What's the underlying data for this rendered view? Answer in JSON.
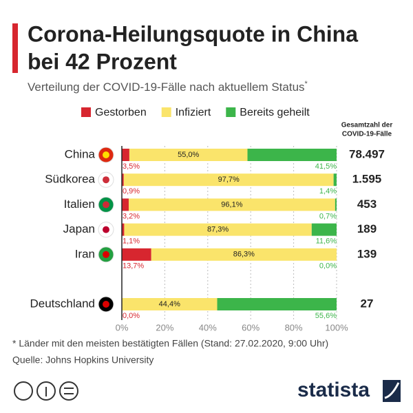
{
  "chart_data": {
    "type": "stacked_bar_horizontal",
    "title_lines": [
      "Corona-Heilungsquote in China",
      "bei 42 Prozent"
    ],
    "subtitle": "Verteilung der COVID-19-Fälle nach aktuellem Status",
    "subtitle_mark": "*",
    "categories": [
      "China",
      "Südkorea",
      "Italien",
      "Japan",
      "Iran",
      "Deutschland"
    ],
    "series": [
      {
        "name": "Gestorben",
        "color": "#d7262f",
        "values": [
          3.5,
          0.9,
          3.2,
          1.1,
          13.7,
          0.0
        ],
        "value_labels": [
          "3,5%",
          "0,9%",
          "3,2%",
          "1,1%",
          "13,7%",
          "0,0%"
        ]
      },
      {
        "name": "Infiziert",
        "color": "#fae46b",
        "values": [
          55.0,
          97.7,
          96.1,
          87.3,
          86.3,
          44.4
        ],
        "value_labels": [
          "55,0%",
          "97,7%",
          "96,1%",
          "87,3%",
          "86,3%",
          "44,4%"
        ]
      },
      {
        "name": "Bereits geheilt",
        "color": "#3cb54a",
        "values": [
          41.5,
          1.4,
          0.7,
          11.6,
          0.0,
          55.6
        ],
        "value_labels": [
          "41,5%",
          "1,4%",
          "0,7%",
          "11,6%",
          "0,0%",
          "55,6%"
        ]
      }
    ],
    "xlim": [
      0,
      100
    ],
    "xticks": [
      {
        "value": 0,
        "label": "0%"
      },
      {
        "value": 20,
        "label": "20%"
      },
      {
        "value": 40,
        "label": "40%"
      },
      {
        "value": 60,
        "label": "60%"
      },
      {
        "value": 80,
        "label": "80%"
      },
      {
        "value": 100,
        "label": "100%"
      }
    ],
    "grid": true,
    "totals": {
      "title_lines": [
        "Gesamtzahl der",
        "COVID-19-Fälle"
      ],
      "values": [
        78497,
        1595,
        453,
        189,
        139,
        27
      ],
      "value_labels": [
        "78.497",
        "1.595",
        "453",
        "189",
        "139",
        "27"
      ]
    },
    "note": "* Länder mit den meisten bestätigten Fällen (Stand: 27.02.2020, 9:00 Uhr)",
    "source": "Quelle: Johns Hopkins University",
    "brand": "statista"
  }
}
